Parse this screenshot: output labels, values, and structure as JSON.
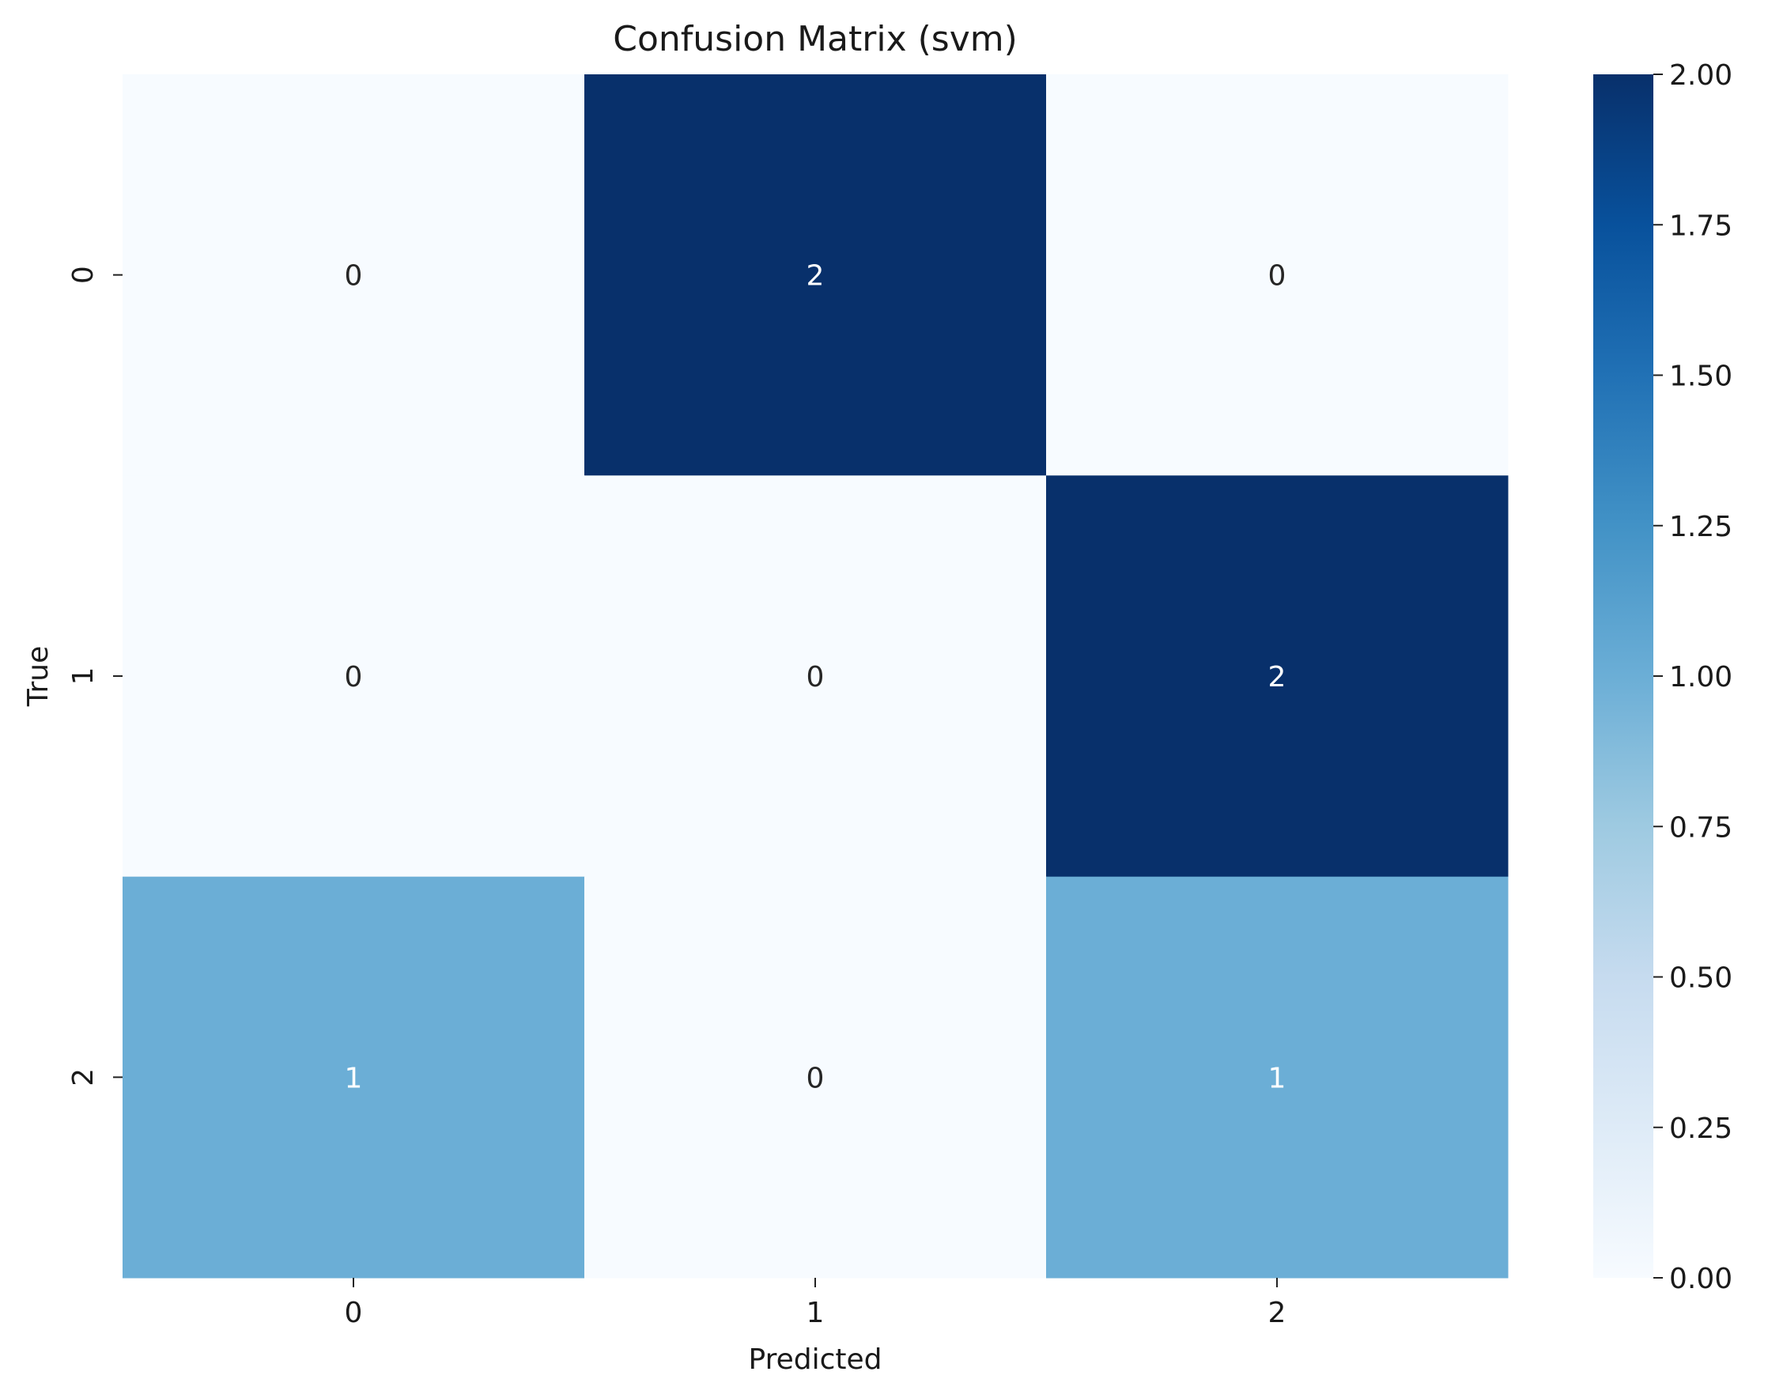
{
  "chart_data": {
    "type": "heatmap",
    "title": "Confusion Matrix (svm)",
    "xlabel": "Predicted",
    "ylabel": "True",
    "x_categories": [
      "0",
      "1",
      "2"
    ],
    "y_categories": [
      "0",
      "1",
      "2"
    ],
    "values": [
      [
        0,
        2,
        0
      ],
      [
        0,
        0,
        2
      ],
      [
        1,
        0,
        1
      ]
    ],
    "colormap": "Blues",
    "color_low": "#f7fbff",
    "color_mid": "#6baed6",
    "color_high": "#08306b",
    "colorbar": {
      "range": [
        0,
        2
      ],
      "ticks": [
        "0.00",
        "0.25",
        "0.50",
        "0.75",
        "1.00",
        "1.25",
        "1.50",
        "1.75",
        "2.00"
      ]
    },
    "annotations": true,
    "grid": false
  }
}
